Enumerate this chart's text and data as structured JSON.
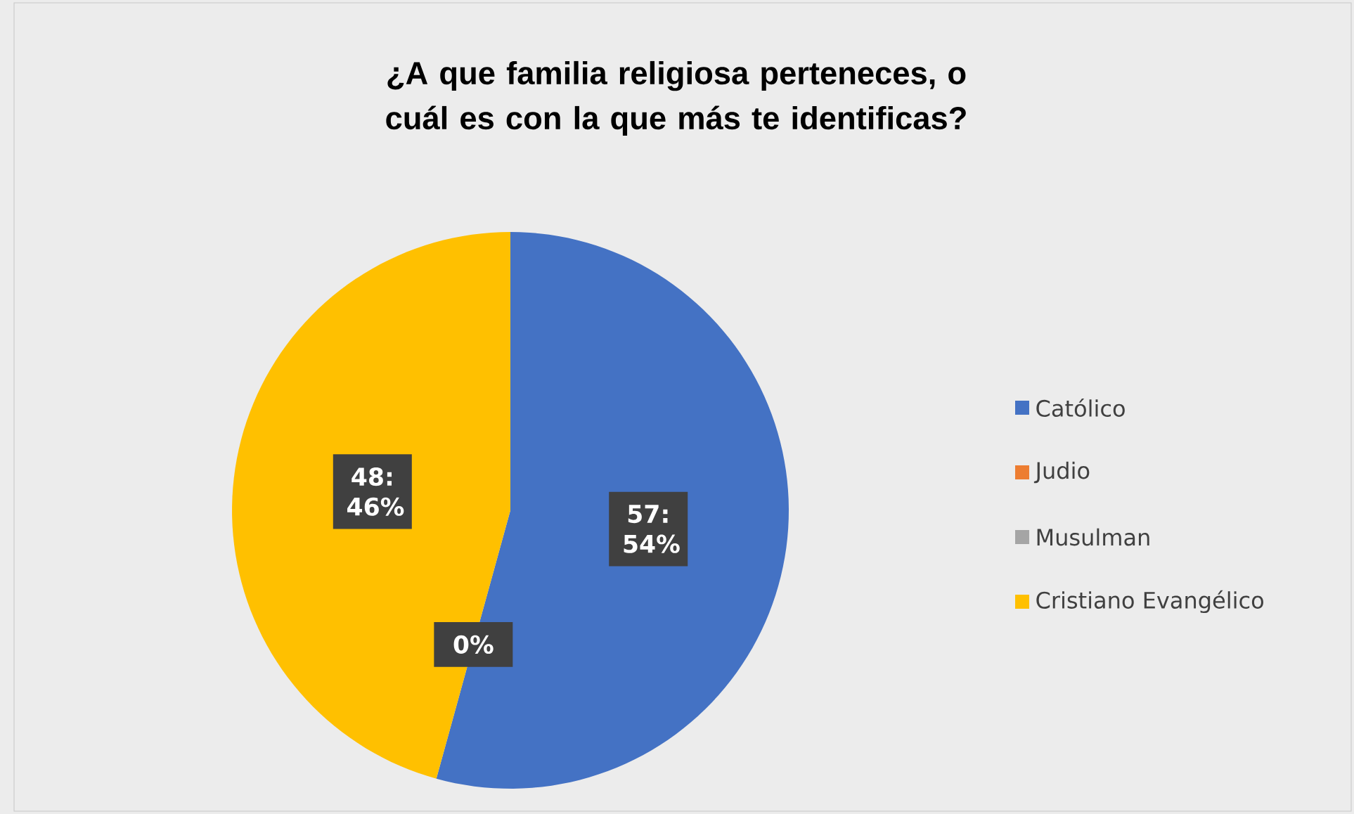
{
  "chart_data": {
    "type": "pie",
    "title": "¿A que familia religiosa perteneces, o cuál es con la que más te identificas?",
    "categories": [
      "Católico",
      "Judio",
      "Musulman",
      "Cristiano Evangélico"
    ],
    "values": [
      57,
      0,
      0,
      48
    ],
    "colors": [
      "#4472c4",
      "#ed7d31",
      "#a5a5a5",
      "#ffc000"
    ],
    "value_labels": [
      "57: 54%",
      "0%",
      null,
      "48: 46%"
    ],
    "legend": "right"
  }
}
